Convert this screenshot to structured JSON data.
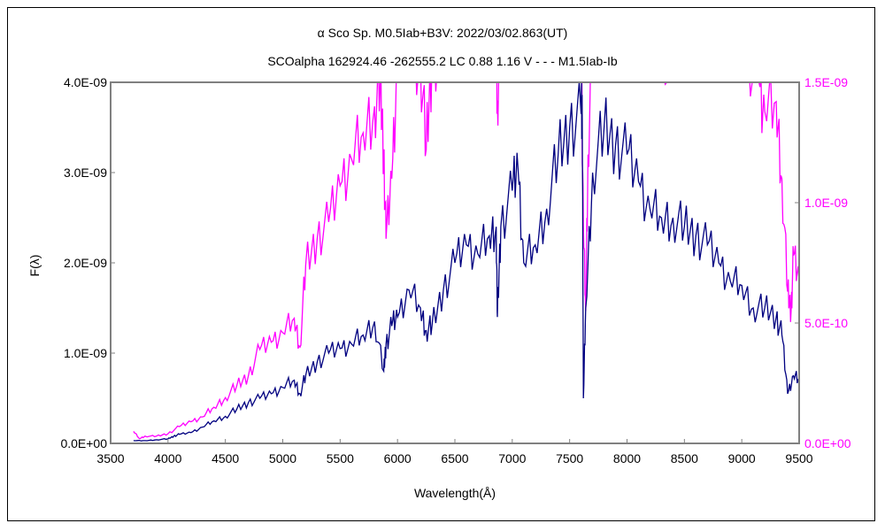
{
  "chart_data": {
    "type": "line",
    "title": "α Sco    Sp. M0.5Iab+B3V:    2022/03/02.863(UT)",
    "subtitle": "SCOalpha 162924.46 -262555.2 LC 0.88 1.16 V - - - M1.5Iab-Ib",
    "xlabel": "Wavelength(Å)",
    "ylabel": "F(λ)",
    "xlim": [
      3500,
      9500
    ],
    "ylim": [
      0,
      4e-09
    ],
    "y2lim": [
      0,
      1.5e-09
    ],
    "grid": false,
    "x_ticks": [
      "3500",
      "4000",
      "4500",
      "5000",
      "5500",
      "6000",
      "6500",
      "7000",
      "7500",
      "8000",
      "8500",
      "9000",
      "9500"
    ],
    "y_ticks": [
      "0.0E+00",
      "1.0E-09",
      "2.0E-09",
      "3.0E-09",
      "4.0E-09"
    ],
    "y2_ticks": [
      "0.0E+00",
      "5.0E-10",
      "1.0E-09",
      "1.5E-09"
    ],
    "colors": {
      "primary": "#000080",
      "secondary": "#ff00ff",
      "axis": "#808080"
    },
    "series": [
      {
        "name": "α Sco (left axis)",
        "axis": "left",
        "unit": 1e-09,
        "x": [
          3700,
          3800,
          3900,
          4000,
          4050,
          4100,
          4200,
          4300,
          4400,
          4500,
          4600,
          4700,
          4800,
          4900,
          5000,
          5100,
          5150,
          5200,
          5300,
          5400,
          5500,
          5600,
          5700,
          5800,
          5880,
          5900,
          5950,
          6000,
          6100,
          6200,
          6250,
          6300,
          6400,
          6500,
          6600,
          6700,
          6800,
          6860,
          6870,
          6900,
          7000,
          7050,
          7100,
          7200,
          7300,
          7400,
          7500,
          7600,
          7610,
          7620,
          7640,
          7700,
          7800,
          7900,
          8000,
          8100,
          8200,
          8300,
          8400,
          8500,
          8600,
          8700,
          8800,
          8900,
          9000,
          9100,
          9200,
          9300,
          9350,
          9400,
          9450,
          9500
        ],
        "y": [
          0.03,
          0.03,
          0.04,
          0.05,
          0.08,
          0.1,
          0.12,
          0.18,
          0.25,
          0.3,
          0.38,
          0.45,
          0.5,
          0.55,
          0.62,
          0.7,
          0.55,
          0.75,
          0.9,
          1.0,
          1.05,
          1.1,
          1.2,
          1.35,
          0.8,
          1.1,
          1.3,
          1.4,
          1.7,
          1.5,
          1.25,
          1.3,
          1.7,
          2.0,
          2.2,
          2.1,
          2.3,
          2.4,
          1.4,
          2.4,
          2.8,
          3.05,
          2.0,
          2.2,
          2.6,
          3.2,
          3.5,
          3.65,
          3.6,
          0.5,
          1.5,
          3.0,
          3.5,
          3.3,
          3.2,
          2.9,
          2.6,
          2.5,
          2.5,
          2.4,
          2.3,
          2.2,
          2.0,
          1.8,
          1.75,
          1.5,
          1.5,
          1.4,
          1.2,
          0.55,
          0.75,
          0.7
        ]
      },
      {
        "name": "M1.5Iab-Ib (right axis)",
        "axis": "right",
        "unit": 1e-10,
        "x": [
          3700,
          3750,
          3800,
          3900,
          4000,
          4100,
          4200,
          4300,
          4400,
          4500,
          4600,
          4700,
          4800,
          4900,
          5000,
          5100,
          5150,
          5200,
          5300,
          5400,
          5500,
          5600,
          5700,
          5800,
          5850,
          5880,
          5900,
          5950,
          6000,
          6100,
          6200,
          6250,
          6300,
          6400,
          6500,
          6800,
          6860,
          6870,
          6900,
          7000,
          7500,
          7600,
          7620,
          7640,
          7660,
          7700,
          8000,
          9000,
          9150,
          9200,
          9300,
          9350,
          9400,
          9430,
          9450,
          9500
        ],
        "y": [
          0.5,
          0.2,
          0.3,
          0.3,
          0.4,
          0.7,
          0.9,
          1.1,
          1.5,
          1.9,
          2.4,
          2.8,
          3.9,
          4.2,
          4.6,
          5.2,
          4.0,
          7.4,
          8.5,
          9.2,
          10.7,
          11.8,
          12.9,
          14.0,
          15.0,
          12.0,
          8.5,
          11.0,
          16.0,
          16.5,
          16.0,
          12.2,
          16.0,
          17.0,
          17.5,
          17.5,
          17.5,
          14.2,
          17.5,
          18.0,
          18.0,
          17.0,
          9.0,
          5.5,
          12.0,
          17.0,
          17.0,
          16.0,
          15.0,
          13.8,
          14.2,
          11.0,
          6.3,
          5.5,
          7.8,
          6.7
        ]
      }
    ]
  }
}
